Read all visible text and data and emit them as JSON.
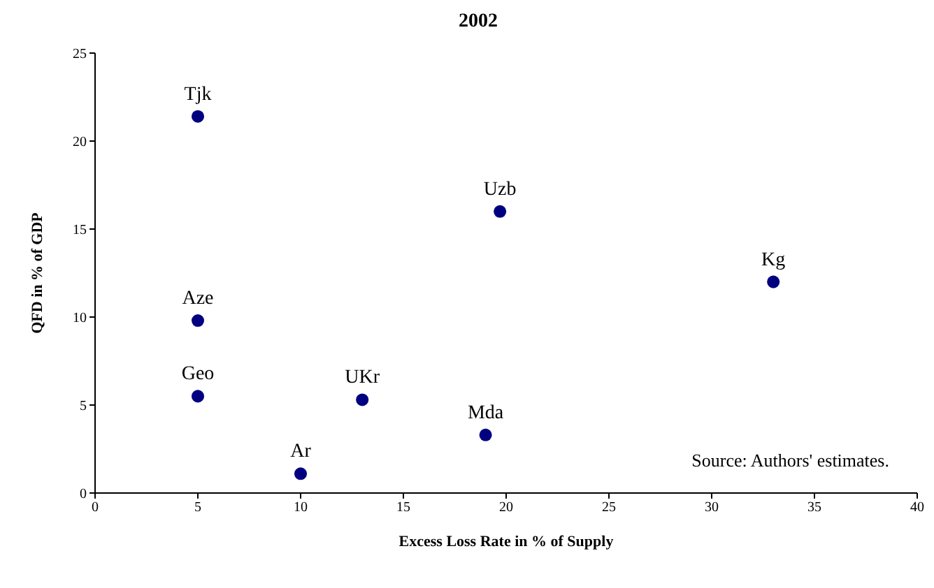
{
  "chart_data": {
    "type": "scatter",
    "title": "2002",
    "xlabel": "Excess Loss Rate in % of Supply",
    "ylabel": "QFD in % of GDP",
    "x": [
      5,
      19.7,
      33,
      5,
      5,
      13,
      19,
      10
    ],
    "series": [
      {
        "color": "#000080",
        "values": [
          21.4,
          16,
          12,
          9.8,
          5.5,
          5.3,
          3.3,
          1.1
        ]
      }
    ],
    "xlim": [
      0,
      40
    ],
    "xticks": [
      0,
      5,
      10,
      15,
      20,
      25,
      30,
      35,
      40
    ],
    "ylim": [
      0,
      25
    ],
    "yticks": [
      0,
      5,
      10,
      15,
      20,
      25
    ],
    "grid": false,
    "marker": "circle",
    "annotations": [
      {
        "text": "Tjk",
        "x": 5,
        "y": 21.4
      },
      {
        "text": "Uzb",
        "x": 19.7,
        "y": 16
      },
      {
        "text": "Kg",
        "x": 33,
        "y": 12
      },
      {
        "text": "Aze",
        "x": 5,
        "y": 9.8
      },
      {
        "text": "Geo",
        "x": 5,
        "y": 5.5
      },
      {
        "text": "UKr",
        "x": 13,
        "y": 5.3
      },
      {
        "text": "Mda",
        "x": 19,
        "y": 3.3
      },
      {
        "text": "Ar",
        "x": 10,
        "y": 1.1
      },
      "Source: Authors' estimates."
    ]
  }
}
